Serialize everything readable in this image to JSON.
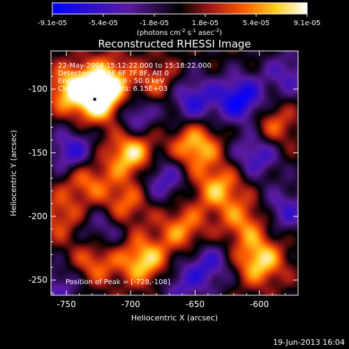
{
  "chart_data": {
    "type": "heatmap",
    "title": "Reconstructed RHESSI Image",
    "xlabel": "Heliocentric X (arcsec)",
    "ylabel": "Heliocentric Y (arcsec)",
    "xlim": [
      -762,
      -570
    ],
    "ylim": [
      -262,
      -70
    ],
    "xticks": [
      -750,
      -700,
      -650,
      -600
    ],
    "yticks": [
      -100,
      -150,
      -200,
      -250
    ],
    "colorbar": {
      "ticks": [
        "-9.1e-05",
        "-5.4e-05",
        "-1.8e-05",
        "1.8e-05",
        "5.4e-05",
        "9.1e-05"
      ],
      "range": [
        -9.1e-05,
        9.1e-05
      ],
      "label_main": "(photons cm",
      "label_exp1": "-2",
      "label_mid": " s",
      "label_exp2": "-1",
      "label_end": " asec",
      "label_exp3": "-2",
      "label_close": ")",
      "colors": [
        "#0000ff",
        "#5a1aa0",
        "#000000",
        "#a01818",
        "#ff5a00",
        "#ffd020",
        "#ffffff"
      ]
    },
    "annotations": [
      "22-May-2004 15:12:22.000 to 15:18:22.000",
      "Detectors: 4F 5F 6F 7F 8F, Att 0",
      "Energy Range: 25.0 - 50.0 keV",
      "Clean    Total counts: 6.15E+03"
    ],
    "peak_label": "Position of Peak = [-728,-108]",
    "peak": [
      -728,
      -108
    ],
    "features": [
      {
        "x": -745,
        "y": -100,
        "v": 0.9
      },
      {
        "x": -722,
        "y": -110,
        "v": 0.95
      },
      {
        "x": -718,
        "y": -92,
        "v": 0.7
      },
      {
        "x": -700,
        "y": -150,
        "v": 0.9
      },
      {
        "x": -735,
        "y": -170,
        "v": 0.6
      },
      {
        "x": -650,
        "y": -145,
        "v": 0.8
      },
      {
        "x": -632,
        "y": -178,
        "v": 0.7
      },
      {
        "x": -705,
        "y": -190,
        "v": 0.55
      },
      {
        "x": -690,
        "y": -235,
        "v": 0.85
      },
      {
        "x": -728,
        "y": -235,
        "v": 0.55
      },
      {
        "x": -600,
        "y": -235,
        "v": 0.85
      },
      {
        "x": -590,
        "y": -130,
        "v": 0.55
      },
      {
        "x": -660,
        "y": -210,
        "v": 0.6
      },
      {
        "x": -612,
        "y": -205,
        "v": 0.55
      },
      {
        "x": -755,
        "y": -200,
        "v": 0.45
      },
      {
        "x": -680,
        "y": -95,
        "v": 0.45
      },
      {
        "x": -615,
        "y": -108,
        "v": -0.95
      },
      {
        "x": -602,
        "y": -150,
        "v": -0.7
      },
      {
        "x": -652,
        "y": -108,
        "v": -0.7
      },
      {
        "x": -745,
        "y": -150,
        "v": -0.75
      },
      {
        "x": -698,
        "y": -120,
        "v": -0.65
      },
      {
        "x": -675,
        "y": -170,
        "v": -0.6
      },
      {
        "x": -640,
        "y": -238,
        "v": -0.6
      },
      {
        "x": -722,
        "y": -210,
        "v": -0.5
      },
      {
        "x": -580,
        "y": -195,
        "v": -0.55
      },
      {
        "x": -755,
        "y": -255,
        "v": -0.45
      },
      {
        "x": -662,
        "y": -255,
        "v": -0.45
      },
      {
        "x": -578,
        "y": -88,
        "v": -0.5
      }
    ],
    "footer": "19-Jun-2013 16:04"
  }
}
